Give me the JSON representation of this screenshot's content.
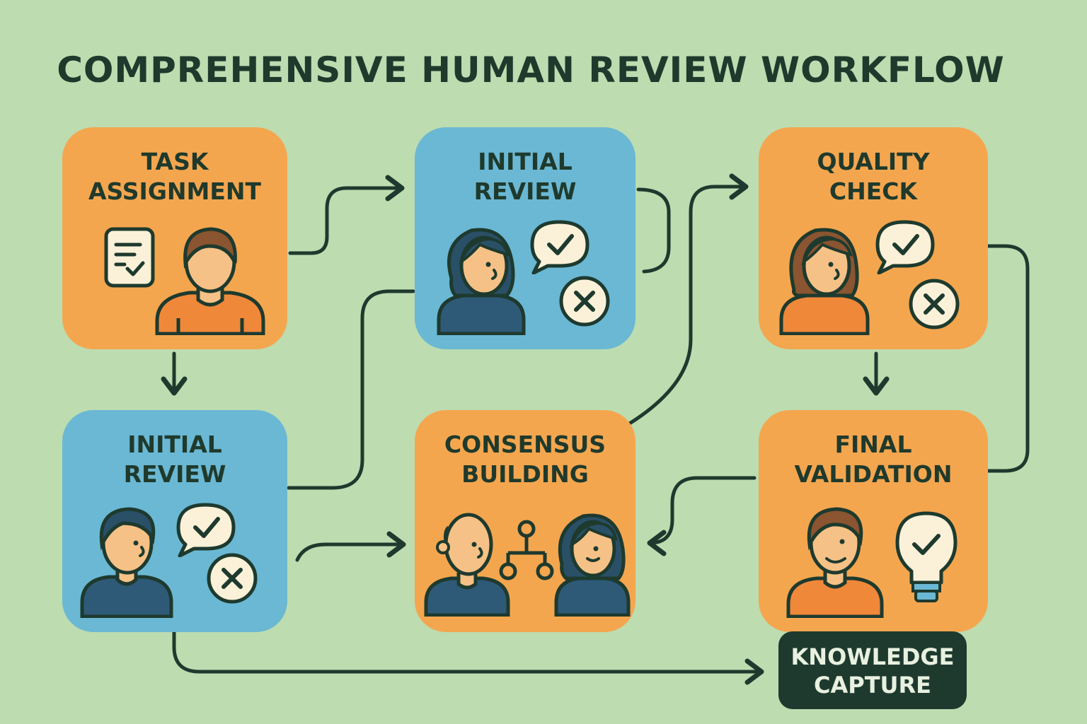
{
  "title": "COMPREHENSIVE HUMAN REVIEW WORKFLOW",
  "nodes": {
    "task_assignment": {
      "label": "TASK\nASSIGNMENT",
      "color": "#f4a64f"
    },
    "initial_review_top": {
      "label": "INITIAL\nREVIEW",
      "color": "#6ab8d4"
    },
    "quality_check": {
      "label": "QUALITY\nCHECK",
      "color": "#f4a64f"
    },
    "initial_review_bottom": {
      "label": "INITIAL\nREVIEW",
      "color": "#6ab8d4"
    },
    "consensus_building": {
      "label": "CONSENSUS\nBUILDING",
      "color": "#f4a64f"
    },
    "final_validation": {
      "label": "FINAL\nVALIDATION",
      "color": "#f4a64f"
    },
    "knowledge_capture": {
      "label": "KNOWLEDGE\nCAPTURE",
      "color": "#1e3a2e"
    }
  },
  "icons": [
    "checklist-icon",
    "person-icon",
    "speech-bubble-check-icon",
    "reject-x-icon",
    "network-icon",
    "lightbulb-check-icon"
  ],
  "colors": {
    "background": "#bddcb0",
    "line": "#1e3a2e",
    "skin": "#f6c186",
    "hair_dark": "#2a5068",
    "hair_brown": "#8a5530",
    "shirt_orange": "#f0883a",
    "shirt_blue": "#2e5a78"
  }
}
